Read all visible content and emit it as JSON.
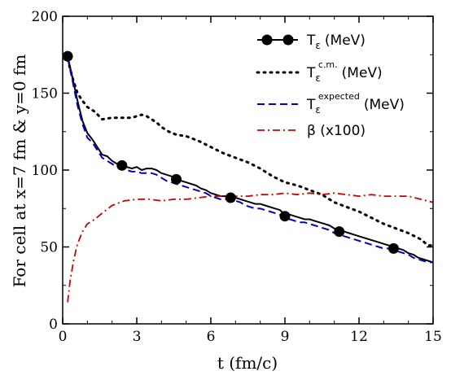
{
  "chart_data": {
    "type": "line",
    "xlabel": "t (fm/c)",
    "ylabel": "For cell at x=7 fm & y=0 fm",
    "xlim": [
      0,
      15
    ],
    "ylim": [
      0,
      200
    ],
    "xticks": [
      "0",
      "3",
      "6",
      "9",
      "12",
      "15"
    ],
    "yticks": [
      "0",
      "50",
      "100",
      "150",
      "200"
    ],
    "grid": false,
    "legend_position": "top-right",
    "series": [
      {
        "name": "T_ε (MeV)",
        "legend_main": "T",
        "legend_sub": "ε",
        "legend_sup": "",
        "legend_unit": "(MeV)",
        "style": "solid-markers",
        "color": "#000000",
        "x": [
          0.2,
          0.4,
          0.6,
          0.8,
          1.0,
          1.2,
          1.4,
          1.6,
          1.8,
          2.0,
          2.2,
          2.4,
          2.6,
          2.8,
          3.0,
          3.2,
          3.4,
          3.6,
          3.8,
          4.0,
          4.2,
          4.4,
          4.6,
          4.8,
          5.0,
          5.2,
          5.4,
          5.6,
          5.8,
          6.0,
          6.2,
          6.4,
          6.6,
          6.8,
          7.0,
          7.2,
          7.4,
          7.6,
          7.8,
          8.0,
          8.2,
          8.4,
          8.6,
          8.8,
          9.0,
          9.2,
          9.4,
          9.6,
          9.8,
          10.0,
          10.2,
          10.4,
          10.6,
          10.8,
          11.0,
          11.2,
          11.4,
          11.6,
          11.8,
          12.0,
          12.2,
          12.4,
          12.6,
          12.8,
          13.0,
          13.2,
          13.4,
          13.6,
          13.8,
          14.0,
          14.2,
          14.4,
          14.6,
          14.8,
          15.0
        ],
        "values": [
          174,
          160,
          145,
          132,
          124,
          120,
          115,
          110,
          109,
          106,
          104,
          103,
          102,
          101,
          102,
          100,
          101,
          101,
          100,
          98,
          97,
          96,
          94,
          93,
          92,
          91,
          90,
          88,
          87,
          85,
          84,
          83,
          83,
          82,
          82,
          81,
          80,
          79,
          78,
          78,
          77,
          76,
          75,
          74,
          71,
          71,
          70,
          69,
          68,
          68,
          67,
          66,
          65,
          64,
          62,
          61,
          60,
          59,
          58,
          57,
          56,
          55,
          54,
          53,
          52,
          51,
          50,
          49,
          48,
          46,
          45,
          43,
          42,
          41,
          40
        ],
        "markers_x": [
          0.2,
          2.4,
          4.6,
          6.8,
          9.0,
          11.2,
          13.4
        ],
        "markers_y": [
          174,
          103,
          94,
          82,
          70,
          60,
          49
        ]
      },
      {
        "name": "T_ε^c.m. (MeV)",
        "legend_main": "T",
        "legend_sub": "ε",
        "legend_sup": "c.m.",
        "legend_unit": "(MeV)",
        "style": "dotted",
        "color": "#000000",
        "x": [
          0.2,
          0.4,
          0.6,
          0.8,
          1.0,
          1.3,
          1.6,
          2.0,
          2.4,
          2.8,
          3.0,
          3.2,
          3.4,
          3.6,
          3.8,
          4.0,
          4.3,
          4.6,
          5.0,
          5.5,
          6.0,
          6.5,
          7.0,
          7.5,
          8.0,
          8.5,
          9.0,
          9.5,
          10.0,
          10.5,
          11.0,
          11.5,
          12.0,
          12.5,
          13.0,
          13.5,
          14.0,
          14.5,
          14.8,
          15.0
        ],
        "values": [
          172,
          160,
          150,
          145,
          141,
          138,
          133,
          134,
          134,
          134,
          135,
          136,
          135,
          133,
          131,
          128,
          125,
          123,
          122,
          119,
          115,
          111,
          108,
          105,
          101,
          96,
          92,
          90,
          87,
          84,
          79,
          76,
          73,
          69,
          65,
          62,
          59,
          55,
          51,
          51
        ]
      },
      {
        "name": "T_ε^expected (MeV)",
        "legend_main": "T",
        "legend_sub": "ε",
        "legend_sup": "expected",
        "legend_unit": "(MeV)",
        "style": "dashed",
        "color": "#0000cc",
        "x": [
          0.2,
          0.4,
          0.6,
          0.8,
          1.0,
          1.2,
          1.4,
          1.6,
          1.8,
          2.0,
          2.2,
          2.4,
          2.6,
          2.8,
          3.0,
          3.2,
          3.4,
          3.6,
          3.8,
          4.0,
          4.2,
          4.4,
          4.6,
          4.8,
          5.0,
          5.2,
          5.4,
          5.6,
          5.8,
          6.0,
          6.2,
          6.4,
          6.6,
          6.8,
          7.0,
          7.2,
          7.4,
          7.6,
          7.8,
          8.0,
          8.2,
          8.4,
          8.6,
          8.8,
          9.0,
          9.2,
          9.4,
          9.6,
          9.8,
          10.0,
          10.2,
          10.4,
          10.6,
          10.8,
          11.0,
          11.2,
          11.4,
          11.6,
          11.8,
          12.0,
          12.2,
          12.4,
          12.6,
          12.8,
          13.0,
          13.2,
          13.4,
          13.6,
          13.8,
          14.0,
          14.2,
          14.4,
          14.6,
          14.8,
          15.0
        ],
        "values": [
          173,
          158,
          142,
          130,
          121,
          118,
          113,
          108,
          106,
          104,
          102,
          101,
          100,
          99,
          99,
          98,
          98,
          98,
          97,
          95,
          93,
          92,
          91,
          90,
          89,
          88,
          87,
          86,
          85,
          83,
          82,
          81,
          81,
          80,
          80,
          79,
          77,
          76,
          75,
          75,
          74,
          73,
          72,
          71,
          68,
          68,
          67,
          66,
          66,
          65,
          64,
          63,
          62,
          61,
          59,
          58,
          57,
          56,
          55,
          54,
          53,
          52,
          51,
          50,
          49,
          49,
          48,
          47,
          46,
          45,
          43,
          42,
          41,
          40,
          40
        ]
      },
      {
        "name": "β (x100)",
        "legend_main": "β (x100)",
        "legend_sub": "",
        "legend_sup": "",
        "legend_unit": "",
        "style": "dashdot",
        "color": "#cc0000",
        "x": [
          0.2,
          0.3,
          0.45,
          0.6,
          0.8,
          1.0,
          1.3,
          1.6,
          2.0,
          2.5,
          3.0,
          3.5,
          4.0,
          4.5,
          5.0,
          5.5,
          6.0,
          6.5,
          7.0,
          7.5,
          8.0,
          8.5,
          9.0,
          9.5,
          10.0,
          10.5,
          11.0,
          11.5,
          12.0,
          12.5,
          13.0,
          13.5,
          14.0,
          14.5,
          15.0
        ],
        "values": [
          14,
          28,
          42,
          52,
          60,
          65,
          68,
          72,
          77,
          80,
          81,
          81,
          80,
          81,
          81,
          82,
          83,
          83,
          83,
          83,
          84,
          84,
          85,
          84,
          85,
          84,
          85,
          84,
          83,
          84,
          83,
          83,
          83,
          81,
          79
        ]
      }
    ]
  }
}
